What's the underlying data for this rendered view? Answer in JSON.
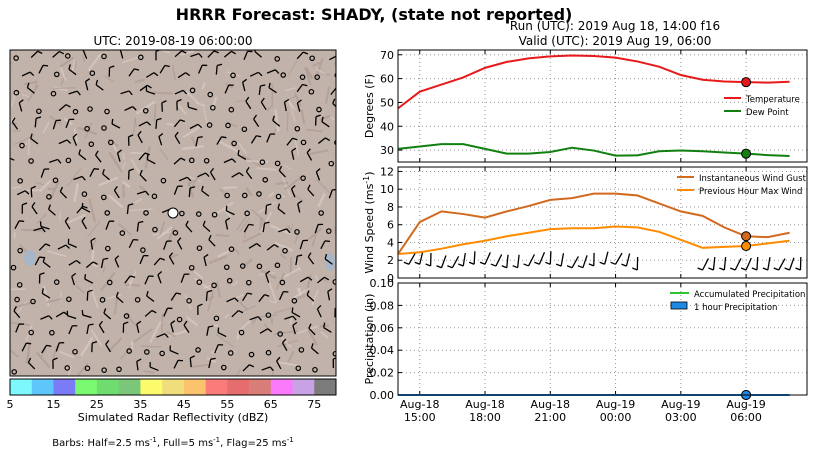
{
  "suptitle": "HRRR Forecast: SHADY, (state not reported)",
  "map": {
    "title": "UTC: 2019-08-19 06:00:00",
    "station_marker_color": "#ffffff",
    "terrain_color": "#c2b3aa"
  },
  "colorbar": {
    "label": "Simulated Radar Reflectivity (dBZ)",
    "ticks": [
      "5",
      "15",
      "25",
      "35",
      "45",
      "55",
      "65",
      "75"
    ],
    "colors": [
      "#7df9fb",
      "#5fc6fb",
      "#7b7bf8",
      "#78f96f",
      "#6fdc70",
      "#7ac77a",
      "#fbfb6c",
      "#f0de7b",
      "#fbc36e",
      "#fb7b7b",
      "#e56d6d",
      "#d97d79",
      "#fb79fb",
      "#c8a2e4",
      "#7b7b7b"
    ]
  },
  "barbs_note": "Barbs: Half=2.5 ms-1, Full=5 ms-1, Flag=25 ms-1",
  "run_title": "Run (UTC): 2019 Aug 18, 14:00 f16",
  "valid_title": "Valid (UTC): 2019 Aug 19, 06:00",
  "chart_data": [
    {
      "type": "line",
      "ylabel": "Degrees (F)",
      "ylim": [
        25,
        72
      ],
      "yticks": [
        30,
        40,
        50,
        60,
        70
      ],
      "x_hours": [
        0,
        1,
        2,
        3,
        4,
        5,
        6,
        7,
        8,
        9,
        10,
        11,
        12,
        13,
        14,
        15,
        16,
        17,
        18
      ],
      "series": [
        {
          "name": "Temperature",
          "color": "#e8191a",
          "values": [
            47.5,
            54.5,
            57.5,
            60.5,
            64.5,
            67,
            68.5,
            69.3,
            69.7,
            69.5,
            68.8,
            67.2,
            65,
            61.5,
            59.5,
            58.8,
            58.5,
            58.3,
            58.7
          ]
        },
        {
          "name": "Dew Point",
          "color": "#118011",
          "values": [
            30.5,
            31.5,
            32.5,
            32.5,
            30.5,
            28.5,
            28.5,
            29.2,
            31,
            29.8,
            27.7,
            27.8,
            29.5,
            29.8,
            29.5,
            29,
            28.5,
            27.9,
            27.5
          ]
        }
      ],
      "marker_hour": 16,
      "legend": "right"
    },
    {
      "type": "line",
      "ylabel": "Wind Speed (ms-1)",
      "ylim": [
        0,
        12.5
      ],
      "yticks": [
        0,
        2,
        4,
        6,
        8,
        10,
        12
      ],
      "x_hours": [
        0,
        1,
        2,
        3,
        4,
        5,
        6,
        7,
        8,
        9,
        10,
        11,
        12,
        13,
        14,
        15,
        16,
        17,
        18
      ],
      "series": [
        {
          "name": "Instantaneous Wind Gust",
          "color": "#d2691e",
          "values": [
            2.7,
            6.3,
            7.5,
            7.2,
            6.8,
            7.5,
            8.1,
            8.8,
            9,
            9.5,
            9.5,
            9.3,
            8.4,
            7.5,
            7,
            5.7,
            4.7,
            4.6,
            5.1
          ]
        },
        {
          "name": "Previous Hour Max Wind",
          "color": "#ff8c00",
          "values": [
            2.7,
            2.9,
            3.3,
            3.8,
            4.2,
            4.7,
            5.1,
            5.5,
            5.6,
            5.6,
            5.8,
            5.7,
            5.2,
            4.3,
            3.4,
            3.5,
            3.6,
            3.9,
            4.2
          ]
        }
      ],
      "marker_hour": 16,
      "legend": "top-right"
    },
    {
      "type": "area",
      "ylabel": "Precipitation (in)",
      "ylim": [
        0,
        0.1
      ],
      "yticks": [
        "0.00",
        "0.02",
        "0.04",
        "0.06",
        "0.08",
        "0.10"
      ],
      "x_hours": [
        0,
        1,
        2,
        3,
        4,
        5,
        6,
        7,
        8,
        9,
        10,
        11,
        12,
        13,
        14,
        15,
        16,
        17,
        18
      ],
      "series": [
        {
          "name": "Accumulated Precipitation",
          "color": "#2ec52e",
          "values": [
            0,
            0,
            0,
            0,
            0,
            0,
            0,
            0,
            0,
            0,
            0,
            0,
            0,
            0,
            0,
            0,
            0,
            0,
            0
          ]
        },
        {
          "name": "1 hour Precipitation",
          "color": "#1e88e5",
          "values": [
            0,
            0,
            0,
            0,
            0,
            0,
            0,
            0,
            0,
            0,
            0,
            0,
            0,
            0,
            0,
            0,
            0,
            0,
            0
          ]
        }
      ],
      "marker_hour": 16,
      "legend": "top-right"
    }
  ],
  "xticks": [
    {
      "hour": 1,
      "line1": "Aug-18",
      "line2": "15:00"
    },
    {
      "hour": 4,
      "line1": "Aug-18",
      "line2": "18:00"
    },
    {
      "hour": 7,
      "line1": "Aug-18",
      "line2": "21:00"
    },
    {
      "hour": 10,
      "line1": "Aug-19",
      "line2": "00:00"
    },
    {
      "hour": 13,
      "line1": "Aug-19",
      "line2": "03:00"
    },
    {
      "hour": 16,
      "line1": "Aug-19",
      "line2": "06:00"
    }
  ],
  "x_range_hours": [
    0,
    18.8
  ]
}
